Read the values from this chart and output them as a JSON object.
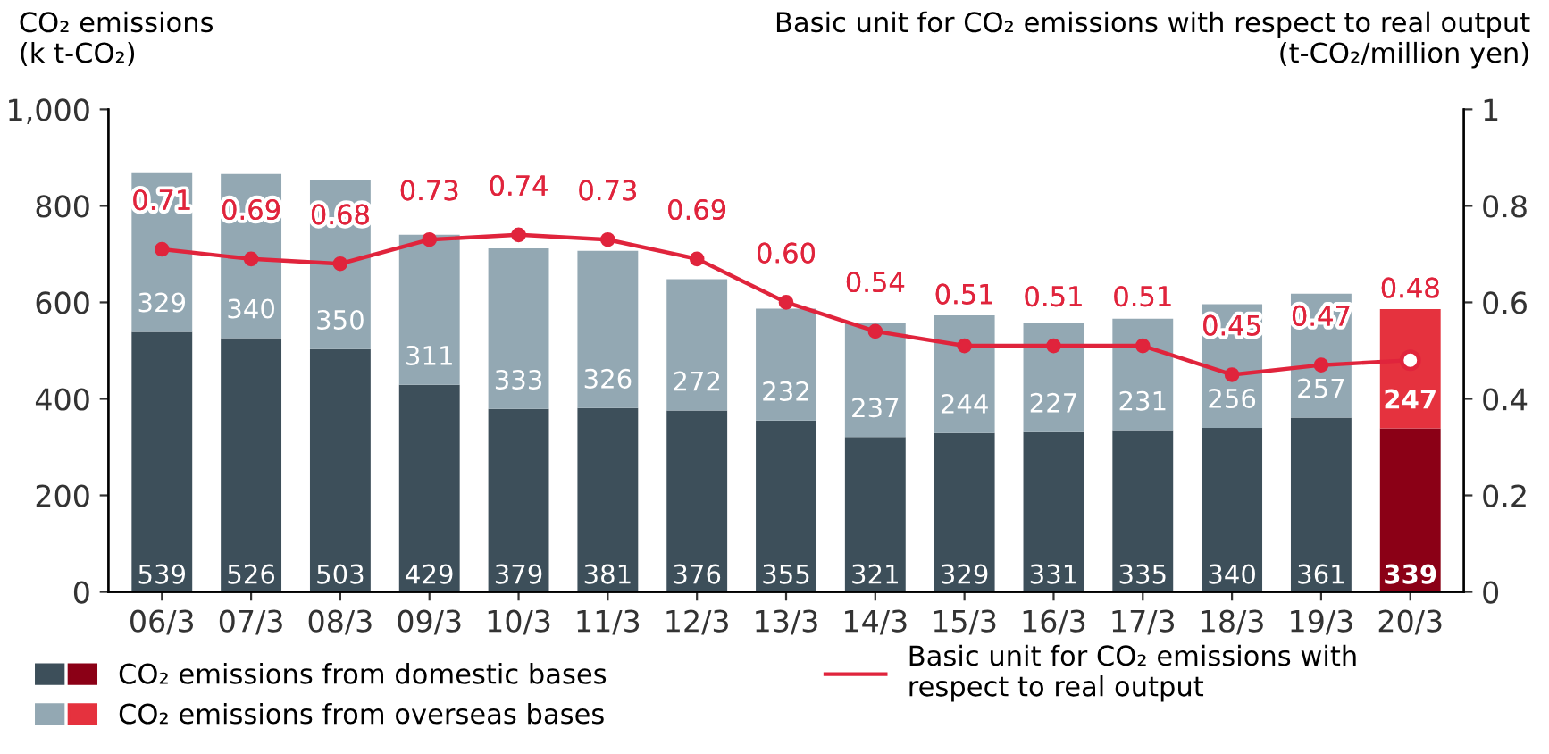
{
  "chart_data": {
    "type": "bar",
    "stacked": true,
    "ylabel": "CO₂ emissions\n(k t-CO₂)",
    "y2label": "Basic unit for CO₂ emissions with respect to real output\n(t-CO₂/million yen)",
    "categories": [
      "06/3",
      "07/3",
      "08/3",
      "09/3",
      "10/3",
      "11/3",
      "12/3",
      "13/3",
      "14/3",
      "15/3",
      "16/3",
      "17/3",
      "18/3",
      "19/3",
      "20/3"
    ],
    "series": [
      {
        "name": "CO₂ emissions from domestic bases",
        "color": "#3d4f5a",
        "colors": [
          "#3d4f5a",
          "#3d4f5a",
          "#3d4f5a",
          "#3d4f5a",
          "#3d4f5a",
          "#3d4f5a",
          "#3d4f5a",
          "#3d4f5a",
          "#3d4f5a",
          "#3d4f5a",
          "#3d4f5a",
          "#3d4f5a",
          "#3d4f5a",
          "#3d4f5a",
          "#8b0016"
        ],
        "values": [
          539,
          526,
          503,
          429,
          379,
          381,
          376,
          355,
          321,
          329,
          331,
          335,
          340,
          361,
          339
        ]
      },
      {
        "name": "CO₂ emissions from overseas bases",
        "color": "#93a8b3",
        "colors": [
          "#93a8b3",
          "#93a8b3",
          "#93a8b3",
          "#93a8b3",
          "#93a8b3",
          "#93a8b3",
          "#93a8b3",
          "#93a8b3",
          "#93a8b3",
          "#93a8b3",
          "#93a8b3",
          "#93a8b3",
          "#93a8b3",
          "#93a8b3",
          "#e5323e"
        ],
        "values": [
          329,
          340,
          350,
          311,
          333,
          326,
          272,
          232,
          237,
          244,
          227,
          231,
          256,
          257,
          247
        ]
      },
      {
        "name": "Basic unit for CO₂ emissions with\nrespect to real output",
        "type": "line",
        "axis": "y2",
        "color": "#e0243c",
        "marker": "circle",
        "values": [
          0.71,
          0.69,
          0.68,
          0.73,
          0.74,
          0.73,
          0.69,
          0.6,
          0.54,
          0.51,
          0.51,
          0.51,
          0.45,
          0.47,
          0.48
        ],
        "value_labels": [
          "0.71",
          "0.69",
          "0.68",
          "0.73",
          "0.74",
          "0.73",
          "0.69",
          "0.60",
          "0.54",
          "0.51",
          "0.51",
          "0.51",
          "0.45",
          "0.47",
          "0.48"
        ]
      }
    ],
    "ylim": [
      0,
      1000
    ],
    "yticks": [
      0,
      200,
      400,
      600,
      800,
      {
        "value": 1000,
        "label": "1,000"
      }
    ],
    "y2lim": [
      0,
      1
    ],
    "y2ticks": [
      0,
      0.2,
      0.4,
      0.6,
      0.8,
      1
    ],
    "data_labels": true,
    "grid": false,
    "legend": "bottom"
  }
}
